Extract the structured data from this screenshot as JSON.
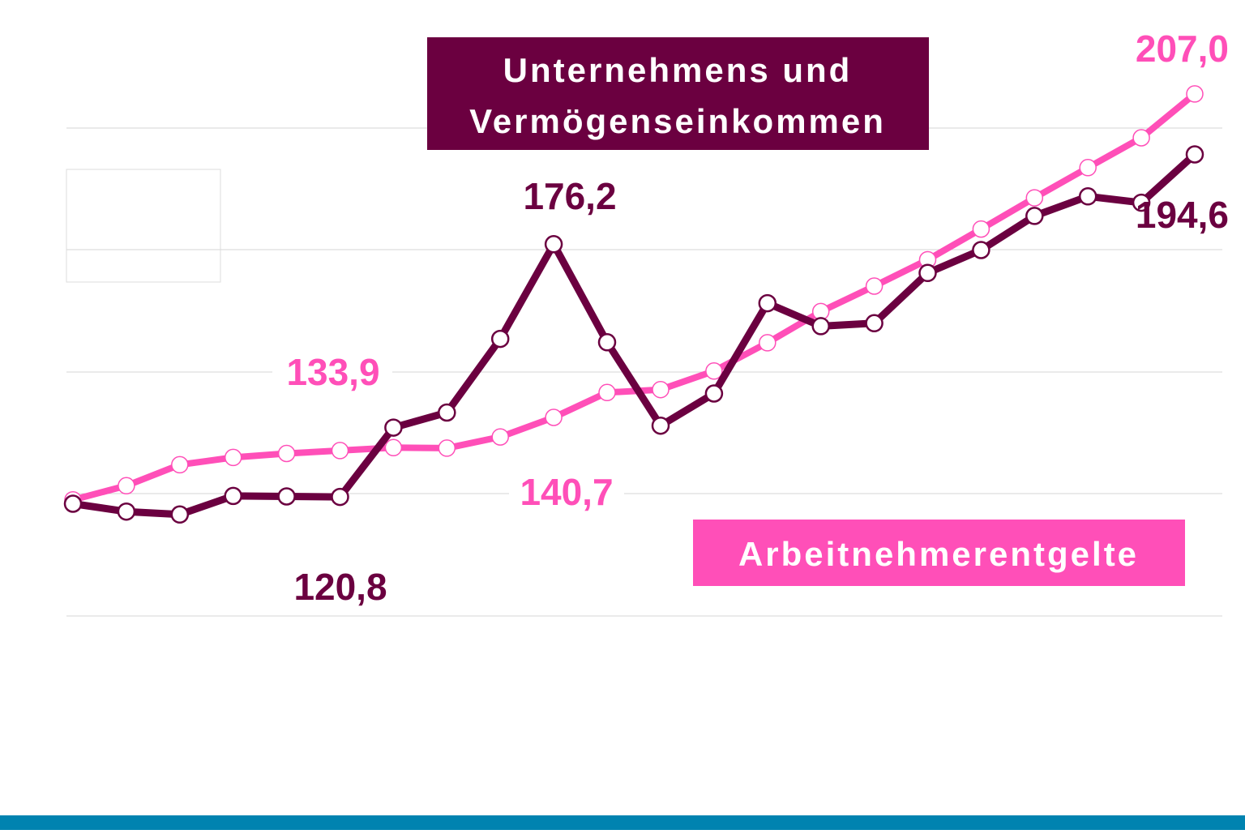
{
  "colors": {
    "dark_series": "#6b0040",
    "pink_series": "#ff4fb8",
    "bottom_bar": "#0083b0",
    "grid": "#d4d4d4",
    "marker_fill": "#ffffff"
  },
  "chart_data": {
    "type": "line",
    "title": "",
    "xlabel": "",
    "ylabel": "",
    "ylim": [
      100,
      210
    ],
    "grid": true,
    "x": [
      1,
      2,
      3,
      4,
      5,
      6,
      7,
      8,
      9,
      10,
      11,
      12,
      13,
      14,
      15,
      16,
      17,
      18,
      19,
      20,
      21,
      22
    ],
    "series": [
      {
        "id": "unternehmen",
        "name_line1": "Unternehmens und",
        "name_line2": "Vermögenseinkommen",
        "color": "#6b0040",
        "values": [
          123.0,
          121.4,
          120.8,
          124.6,
          124.5,
          124.4,
          138.6,
          141.7,
          156.8,
          176.2,
          156.1,
          139.0,
          145.6,
          164.1,
          159.4,
          160.0,
          170.3,
          175.0,
          182.0,
          186.0,
          184.7,
          194.6
        ]
      },
      {
        "id": "arbeitnehmer",
        "name": "Arbeitnehmerentgelte",
        "color": "#ff4fb8",
        "values": [
          123.8,
          126.7,
          131.0,
          132.5,
          133.3,
          133.9,
          134.5,
          134.4,
          136.7,
          140.7,
          145.8,
          146.4,
          150.2,
          156.0,
          162.4,
          167.6,
          173.0,
          179.3,
          185.7,
          191.9,
          198.0,
          207.0
        ]
      }
    ],
    "annotations": [
      {
        "text": "176,2",
        "series": "unternehmen"
      },
      {
        "text": "120,8",
        "series": "unternehmen"
      },
      {
        "text": "194,6",
        "series": "unternehmen"
      },
      {
        "text": "133,9",
        "series": "arbeitnehmer"
      },
      {
        "text": "140,7",
        "series": "arbeitnehmer"
      },
      {
        "text": "207,0",
        "series": "arbeitnehmer"
      }
    ]
  }
}
